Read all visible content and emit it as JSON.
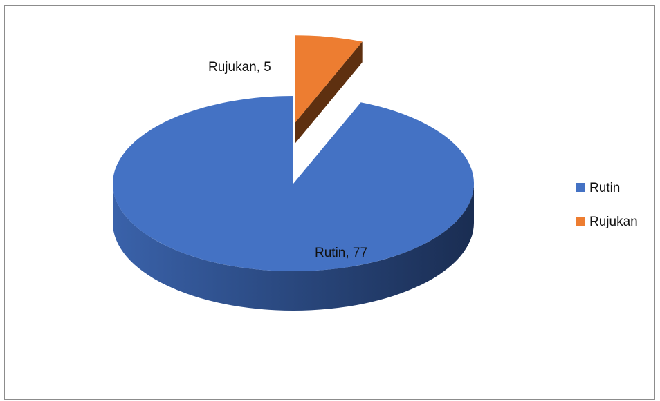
{
  "chart_data": {
    "type": "pie",
    "style": "3d-exploded",
    "slices": [
      {
        "name": "Rutin",
        "value": 77,
        "color": "#4472C4",
        "data_label": "Rutin, 77"
      },
      {
        "name": "Rujukan",
        "value": 5,
        "color": "#ED7D31",
        "data_label": "Rujukan, 5"
      }
    ],
    "legend": {
      "position": "right",
      "items": [
        {
          "label": "Rutin",
          "color": "#4472C4"
        },
        {
          "label": "Rujukan",
          "color": "#ED7D31"
        }
      ]
    }
  }
}
